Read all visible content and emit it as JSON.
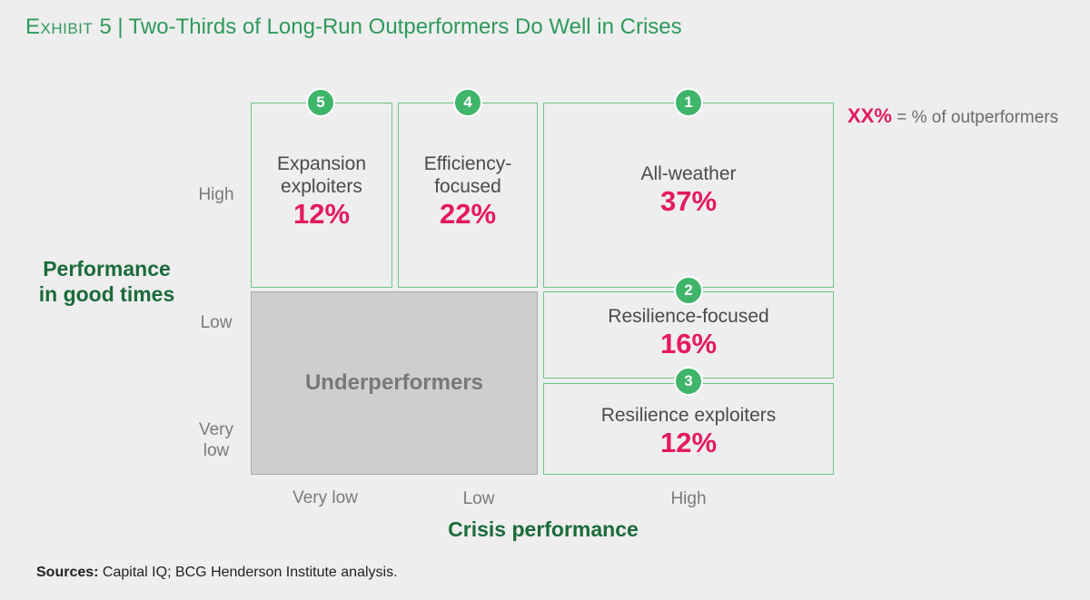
{
  "title": {
    "exhibit": "Exhibit 5",
    "separator": "|",
    "text": "Two-Thirds of Long-Run Outperformers Do Well in Crises"
  },
  "y_axis": {
    "label_line1": "Performance",
    "label_line2": "in good times",
    "ticks": [
      "High",
      "Low",
      "Very",
      "low"
    ]
  },
  "x_axis": {
    "label": "Crisis performance",
    "ticks": [
      "Very low",
      "Low",
      "High"
    ]
  },
  "legend": {
    "key": "XX%",
    "text": "= % of outperformers"
  },
  "segments": [
    {
      "rank": "5",
      "name_line1": "Expansion",
      "name_line2": "exploiters",
      "pct": "12%"
    },
    {
      "rank": "4",
      "name_line1": "Efficiency-",
      "name_line2": "focused",
      "pct": "22%"
    },
    {
      "rank": "1",
      "name_line1": "All-weather",
      "name_line2": "",
      "pct": "37%"
    },
    {
      "rank": "2",
      "name_line1": "Resilience-focused",
      "name_line2": "",
      "pct": "16%"
    },
    {
      "rank": "3",
      "name_line1": "Resilience exploiters",
      "name_line2": "",
      "pct": "12%"
    }
  ],
  "underperformers": "Underperformers",
  "sources": {
    "label": "Sources:",
    "text": "Capital IQ; BCG Henderson Institute analysis."
  },
  "colors": {
    "title_green": "#2e9a5a",
    "axis_green": "#1a6b3a",
    "badge_green": "#3fb56a",
    "pct_pink": "#e5195e",
    "box_border": "#6cc58a",
    "under_fill": "#cfcdcd"
  }
}
